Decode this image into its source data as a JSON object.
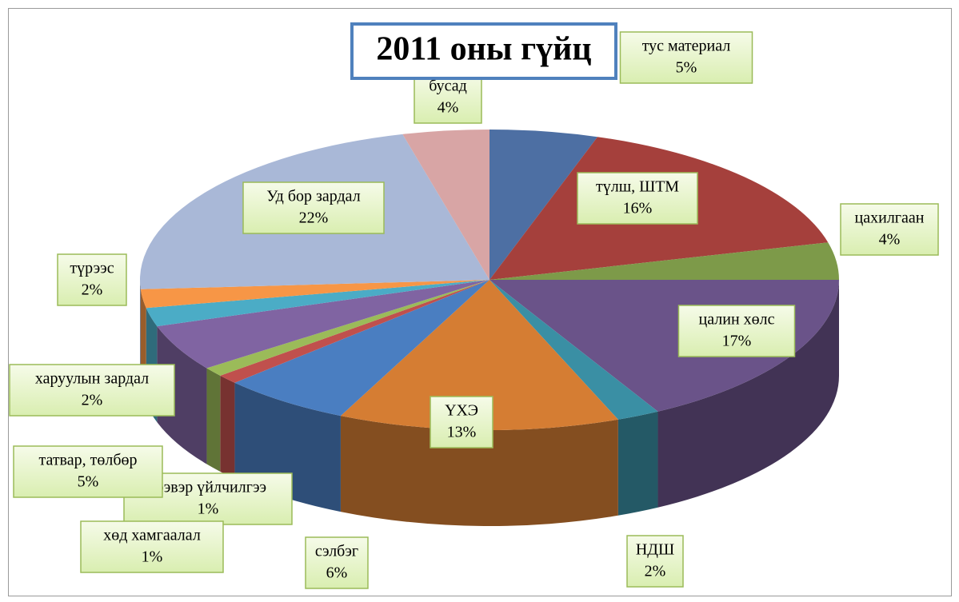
{
  "chart_data": {
    "type": "pie",
    "title": "2011 оны гүйц",
    "categories": [
      "тус материал",
      "түлш, ШТМ",
      "цахилгаан",
      "цалин хөлс",
      "НДШ",
      "ҮХЭ",
      "сэлбэг",
      "тээвэр үйлчилгээ",
      "хөд хамгаалал",
      "татвар, төлбөр",
      "харуулын зардал",
      "түрээс",
      "Уд бор зардал",
      "бусад"
    ],
    "values": [
      5,
      16,
      4,
      17,
      2,
      13,
      6,
      1,
      1,
      5,
      2,
      2,
      22,
      4
    ],
    "value_labels": [
      "5%",
      "16%",
      "4%",
      "17%",
      "2%",
      "13%",
      "6%",
      "1%",
      "1%",
      "5%",
      "2%",
      "2%",
      "22%",
      "4%"
    ],
    "colors": [
      "#4d6fa3",
      "#a5403c",
      "#7d9a49",
      "#6a5389",
      "#3a8fa4",
      "#d57d33",
      "#4a7ec1",
      "#c0504d",
      "#9bbb59",
      "#8064a2",
      "#4bacc6",
      "#f79646",
      "#a9b8d7",
      "#d8a5a5"
    ]
  }
}
